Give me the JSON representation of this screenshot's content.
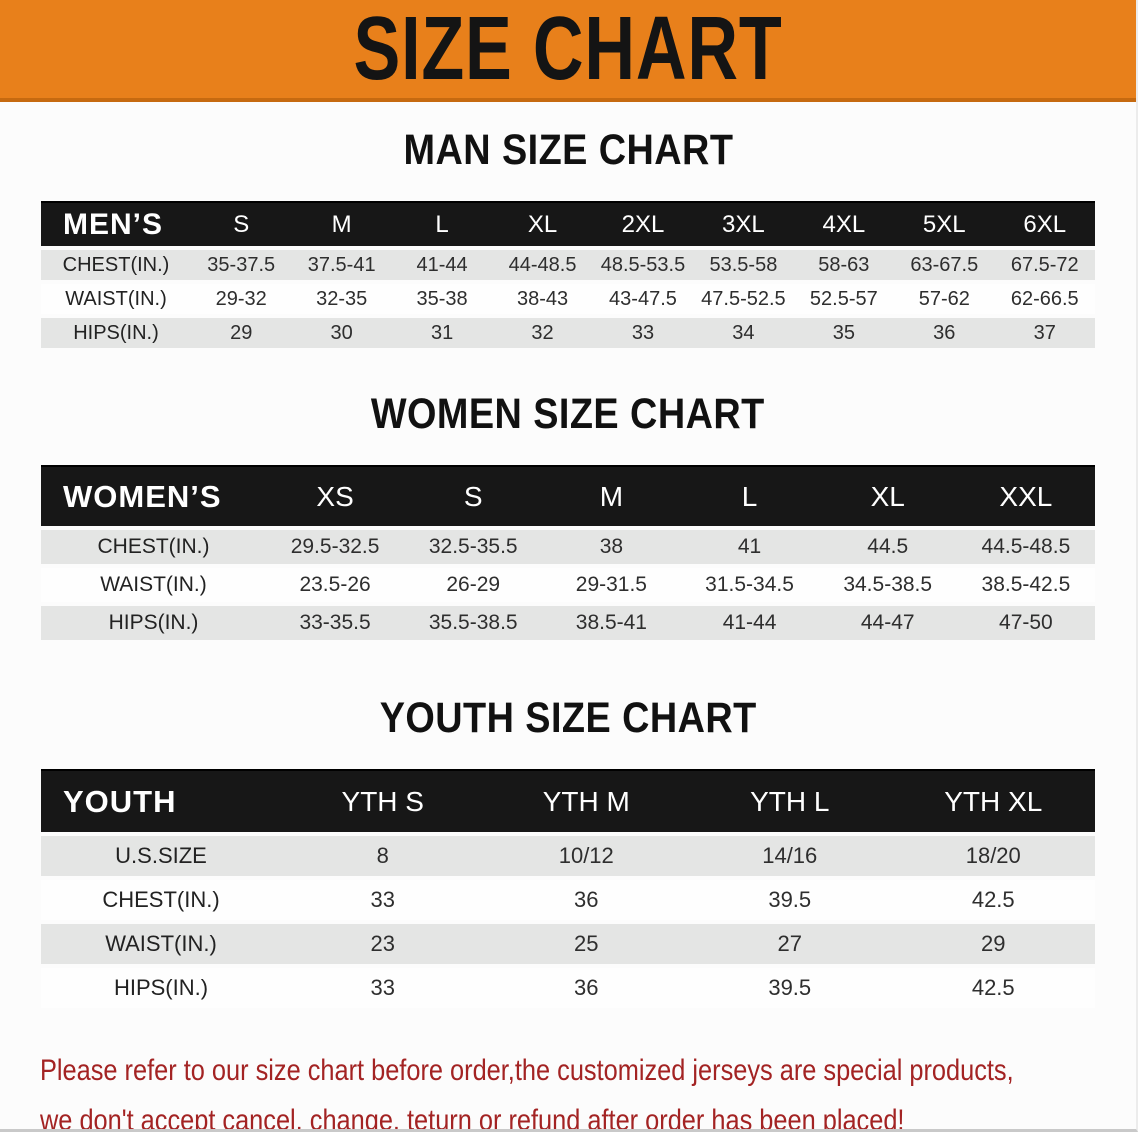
{
  "banner": {
    "title": "SIZE CHART"
  },
  "colors": {
    "banner_bg": "#E8801B",
    "banner_text": "#141414",
    "table_header_bg": "#171717",
    "table_header_text": "#FFFFFF",
    "row_shade": "#E4E5E4",
    "row_white": "#FEFEFE",
    "disclaimer_text": "#A32323"
  },
  "sections": [
    {
      "id": "man",
      "title": "MAN SIZE CHART",
      "table": {
        "header": [
          "MEN’S",
          "S",
          "M",
          "L",
          "XL",
          "2XL",
          "3XL",
          "4XL",
          "5XL",
          "6XL"
        ],
        "rows": [
          {
            "label": "CHEST(IN.)",
            "cells": [
              "35-37.5",
              "37.5-41",
              "41-44",
              "44-48.5",
              "48.5-53.5",
              "53.5-58",
              "58-63",
              "63-67.5",
              "67.5-72"
            ]
          },
          {
            "label": "WAIST(IN.)",
            "cells": [
              "29-32",
              "32-35",
              "35-38",
              "38-43",
              "43-47.5",
              "47.5-52.5",
              "52.5-57",
              "57-62",
              "62-66.5"
            ]
          },
          {
            "label": "HIPS(IN.)",
            "cells": [
              "29",
              "30",
              "31",
              "32",
              "33",
              "34",
              "35",
              "36",
              "37"
            ]
          }
        ]
      }
    },
    {
      "id": "women",
      "title": "WOMEN SIZE CHART",
      "table": {
        "header": [
          "WOMEN’S",
          "XS",
          "S",
          "M",
          "L",
          "XL",
          "XXL"
        ],
        "rows": [
          {
            "label": "CHEST(IN.)",
            "cells": [
              "29.5-32.5",
              "32.5-35.5",
              "38",
              "41",
              "44.5",
              "44.5-48.5"
            ]
          },
          {
            "label": "WAIST(IN.)",
            "cells": [
              "23.5-26",
              "26-29",
              "29-31.5",
              "31.5-34.5",
              "34.5-38.5",
              "38.5-42.5"
            ]
          },
          {
            "label": "HIPS(IN.)",
            "cells": [
              "33-35.5",
              "35.5-38.5",
              "38.5-41",
              "41-44",
              "44-47",
              "47-50"
            ]
          }
        ]
      }
    },
    {
      "id": "youth",
      "title": "YOUTH SIZE CHART",
      "table": {
        "header": [
          "YOUTH",
          "YTH S",
          "YTH M",
          "YTH L",
          "YTH XL"
        ],
        "rows": [
          {
            "label": "U.S.SIZE",
            "cells": [
              "8",
              "10/12",
              "14/16",
              "18/20"
            ]
          },
          {
            "label": "CHEST(IN.)",
            "cells": [
              "33",
              "36",
              "39.5",
              "42.5"
            ]
          },
          {
            "label": "WAIST(IN.)",
            "cells": [
              "23",
              "25",
              "27",
              "29"
            ]
          },
          {
            "label": "HIPS(IN.)",
            "cells": [
              "33",
              "36",
              "39.5",
              "42.5"
            ]
          }
        ]
      }
    }
  ],
  "disclaimer": {
    "line1": "Please refer to our size chart before order,the customized jerseys are special products,",
    "line2": "we don't accept cancel, change, teturn or refund after order has been placed!"
  }
}
